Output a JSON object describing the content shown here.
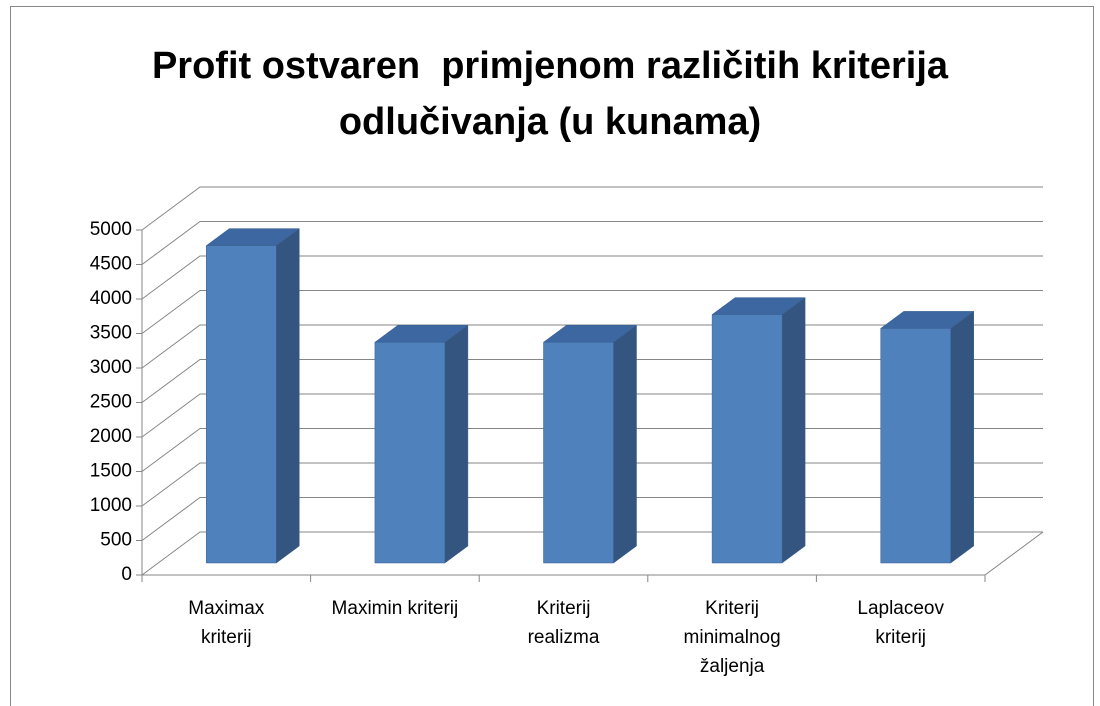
{
  "chart_data": {
    "type": "bar3d",
    "title": "Profit ostvaren  primjenom različitih kriterija odlučivanja (u kunama)",
    "categories": [
      "Maximax kriterij",
      "Maximin kriterij",
      "Kriterij realizma",
      "Kriterij minimalnog žaljenja",
      "Laplaceov kriterij"
    ],
    "values": [
      4600,
      3200,
      3200,
      3600,
      3400
    ],
    "color": "#4f81bd",
    "ylim": [
      0,
      5000
    ],
    "yticks": [
      0,
      500,
      1000,
      1500,
      2000,
      2500,
      3000,
      3500,
      4000,
      4500,
      5000
    ],
    "grid": true
  }
}
